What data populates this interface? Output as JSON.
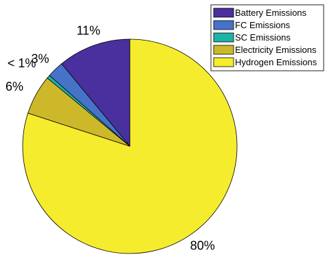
{
  "chart_data": {
    "type": "pie",
    "title": "",
    "slices": [
      {
        "name": "Battery Emissions",
        "value": 11,
        "label": "11%",
        "color": "#4a309e"
      },
      {
        "name": "FC Emissions",
        "value": 2.5,
        "label": "3%",
        "color": "#4673c8"
      },
      {
        "name": "SC Emissions",
        "value": 0.5,
        "label": "< 1%",
        "color": "#1fb3a7"
      },
      {
        "name": "Electricity Emissions",
        "value": 6,
        "label": "6%",
        "color": "#cdb82a"
      },
      {
        "name": "Hydrogen Emissions",
        "value": 80,
        "label": "80%",
        "color": "#f5ec2e"
      }
    ],
    "legend_position": "top-right"
  }
}
